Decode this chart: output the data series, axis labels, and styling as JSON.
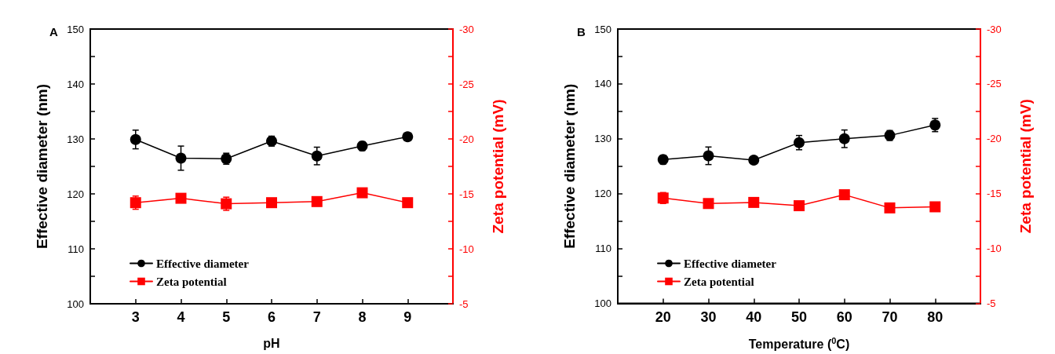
{
  "chart_data": [
    {
      "type": "line",
      "title": "A",
      "xlabel": "pH",
      "ylabel": "Effective diameter (nm)",
      "y2label": "Zeta potential (mV)",
      "x": [
        3,
        4,
        5,
        6,
        7,
        8,
        9
      ],
      "xlim": [
        2,
        10
      ],
      "xticks": [
        3,
        4,
        5,
        6,
        7,
        8,
        9
      ],
      "ylim": [
        100,
        150
      ],
      "yticks": [
        100,
        {
          "value": 105,
          "label": null
        },
        110,
        {
          "value": 115,
          "label": null
        },
        120,
        {
          "value": 125,
          "label": null
        },
        130,
        {
          "value": 135,
          "label": null
        },
        140,
        {
          "value": 145,
          "label": null
        },
        150
      ],
      "y2lim": [
        -5,
        -30
      ],
      "y2ticks": [
        -5,
        {
          "value": -7.5,
          "label": null
        },
        -10,
        {
          "value": -12.5,
          "label": null
        },
        -15,
        {
          "value": -17.5,
          "label": null
        },
        -20,
        {
          "value": -22.5,
          "label": null
        },
        -25,
        {
          "value": -27.5,
          "label": null
        },
        -30
      ],
      "grid": false,
      "legend": "bottom left",
      "series": [
        {
          "name": "Effective diameter",
          "color": "#000000",
          "marker": "circle",
          "values": [
            129.9,
            126.5,
            126.4,
            129.6,
            126.9,
            128.7,
            130.4
          ],
          "errors": [
            1.7,
            2.2,
            1.0,
            0.9,
            1.6,
            0.8,
            0.5
          ]
        },
        {
          "name": "Zeta potential",
          "color": "#ff0000",
          "marker": "square",
          "axis": "y2",
          "values": [
            -14.2,
            -14.6,
            -14.1,
            -14.2,
            -14.3,
            -15.1,
            -14.2
          ],
          "errors": [
            0.6,
            0.3,
            0.6,
            0.3,
            0.4,
            0.3,
            0.3
          ]
        }
      ]
    },
    {
      "type": "line",
      "title": "B",
      "xlabel": "Temperature ($^{0}$C)",
      "ylabel": "Effective diameter (nm)",
      "y2label": "Zeta potential (mV)",
      "x": [
        20,
        30,
        40,
        50,
        60,
        70,
        80
      ],
      "xlim": [
        10,
        90
      ],
      "xticks": [
        20,
        30,
        40,
        50,
        60,
        70,
        80
      ],
      "ylim": [
        100,
        150
      ],
      "yticks": [
        100,
        {
          "value": 105,
          "label": null
        },
        110,
        {
          "value": 115,
          "label": null
        },
        120,
        {
          "value": 125,
          "label": null
        },
        130,
        {
          "value": 135,
          "label": null
        },
        140,
        {
          "value": 145,
          "label": null
        },
        150
      ],
      "y2lim": [
        -5,
        -30
      ],
      "y2ticks": [
        -5,
        {
          "value": -7.5,
          "label": null
        },
        -10,
        {
          "value": -12.5,
          "label": null
        },
        -15,
        {
          "value": -17.5,
          "label": null
        },
        -20,
        {
          "value": -22.5,
          "label": null
        },
        -25,
        {
          "value": -27.5,
          "label": null
        },
        -30
      ],
      "grid": false,
      "legend": "bottom left",
      "series": [
        {
          "name": "Effective diameter",
          "color": "#000000",
          "marker": "circle",
          "values": [
            126.2,
            126.9,
            126.1,
            129.3,
            130.0,
            130.6,
            132.5
          ],
          "errors": [
            0.8,
            1.6,
            0.5,
            1.3,
            1.6,
            0.9,
            1.2
          ]
        },
        {
          "name": "Zeta potential",
          "color": "#ff0000",
          "marker": "square",
          "axis": "y2",
          "values": [
            -14.6,
            -14.1,
            -14.2,
            -13.9,
            -14.9,
            -13.7,
            -13.8
          ],
          "errors": [
            0.5,
            0.3,
            0.3,
            0.3,
            0.3,
            0.3,
            0.3
          ]
        }
      ]
    }
  ]
}
